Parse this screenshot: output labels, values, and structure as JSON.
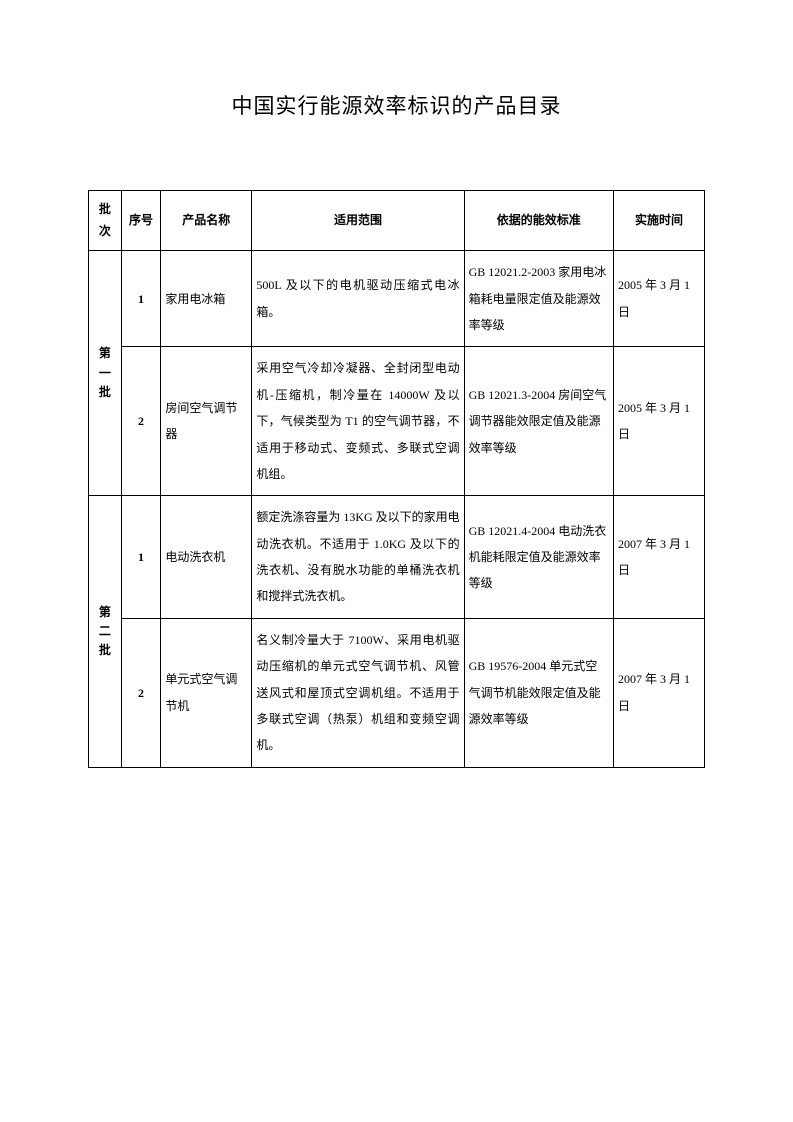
{
  "title": "中国实行能源效率标识的产品目录",
  "table": {
    "columns": [
      "批次",
      "序号",
      "产品名称",
      "适用范围",
      "依据的能效标准",
      "实施时间"
    ],
    "batches": [
      {
        "label_chars": [
          "第",
          "一",
          "批"
        ],
        "rows": [
          {
            "seq": "1",
            "name": "家用电冰箱",
            "scope": "500L 及以下的电机驱动压缩式电冰箱。",
            "standard": "GB 12021.2-2003 家用电冰箱耗电量限定值及能源效率等级",
            "date": "2005 年 3 月 1 日"
          },
          {
            "seq": "2",
            "name": "房间空气调节器",
            "scope": "采用空气冷却冷凝器、全封闭型电动机-压缩机，制冷量在 14000W 及以下，气候类型为 T1 的空气调节器，不适用于移动式、变频式、多联式空调机组。",
            "standard": "GB 12021.3-2004 房间空气调节器能效限定值及能源效率等级",
            "date": "2005 年 3 月 1 日"
          }
        ]
      },
      {
        "label_chars": [
          "第",
          "二",
          "批"
        ],
        "rows": [
          {
            "seq": "1",
            "name": "电动洗衣机",
            "scope": "额定洗涤容量为 13KG 及以下的家用电动洗衣机。不适用于 1.0KG 及以下的洗衣机、没有脱水功能的单桶洗衣机和搅拌式洗衣机。",
            "standard": "GB 12021.4-2004 电动洗衣机能耗限定值及能源效率等级",
            "date": "2007 年 3 月 1 日"
          },
          {
            "seq": "2",
            "name": "单元式空气调节机",
            "scope": "名义制冷量大于 7100W、采用电机驱动压缩机的单元式空气调节机、风管送风式和屋顶式空调机组。不适用于多联式空调（热泵）机组和变频空调机。",
            "standard": "GB 19576-2004 单元式空气调节机能效限定值及能源效率等级",
            "date": "2007 年 3 月 1 日"
          }
        ]
      }
    ]
  }
}
